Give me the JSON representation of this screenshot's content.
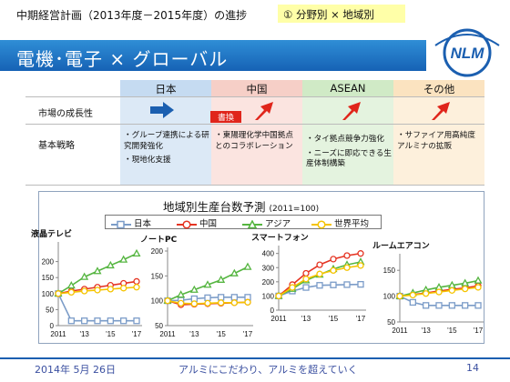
{
  "header": {
    "subtitle": "中期経営計画（2013年度－2015年度）の進捗",
    "tag": "① 分野別 × 地域別",
    "banner_title": "電機･電子 × グローバル",
    "logo_text": "NLM"
  },
  "matrix": {
    "columns": [
      "日本",
      "中国",
      "ASEAN",
      "その他"
    ],
    "row_labels": [
      "市場の成長性",
      "基本戦略"
    ],
    "badge": "書換",
    "strategies": {
      "japan": [
        "・グループ連携による研究開発強化",
        "・現地化支援"
      ],
      "china": [
        "・東陽理化学中国拠点とのコラボレーション"
      ],
      "asean": [
        "・タイ拠点競争力強化",
        "・ニーズに即応できる生産体制構築"
      ],
      "other": [
        "・サファイア用高純度アルミナの拡販"
      ]
    },
    "colors": {
      "japan": "#dce9f6",
      "china": "#fbe4e0",
      "asean": "#e4f3df",
      "other": "#fdf0dc"
    }
  },
  "chart_panel": {
    "title": "地域別生産台数予測",
    "title_note": "(2011=100)",
    "legend": [
      {
        "name": "日本",
        "color": "#7b9cc8"
      },
      {
        "name": "中国",
        "color": "#e53422"
      },
      {
        "name": "アジア",
        "color": "#55b540"
      },
      {
        "name": "世界平均",
        "color": "#f5c400"
      }
    ]
  },
  "chart_data": [
    {
      "type": "line",
      "title": "液晶テレビ",
      "x": [
        "2011",
        "2012",
        "2013",
        "2014",
        "2015",
        "2016",
        "2017"
      ],
      "xticks": [
        "2011",
        "'13",
        "'15",
        "'17"
      ],
      "ylim": [
        0,
        250
      ],
      "yticks": [
        0,
        50,
        100,
        150,
        200
      ],
      "series": [
        {
          "name": "日本",
          "values": [
            100,
            15,
            15,
            15,
            15,
            15,
            15
          ]
        },
        {
          "name": "中国",
          "values": [
            100,
            108,
            114,
            120,
            126,
            132,
            138
          ]
        },
        {
          "name": "アジア",
          "values": [
            100,
            125,
            152,
            170,
            188,
            206,
            225
          ]
        },
        {
          "name": "世界平均",
          "values": [
            100,
            104,
            108,
            111,
            114,
            117,
            120
          ]
        }
      ]
    },
    {
      "type": "line",
      "title": "ノートPC",
      "x": [
        "2011",
        "2012",
        "2013",
        "2014",
        "2015",
        "2016",
        "2017"
      ],
      "xticks": [
        "2011",
        "'13",
        "'15",
        "'17"
      ],
      "ylim": [
        50,
        200
      ],
      "yticks": [
        50,
        100,
        150,
        200
      ],
      "series": [
        {
          "name": "日本",
          "values": [
            100,
            101,
            104,
            106,
            107,
            107,
            107
          ]
        },
        {
          "name": "中国",
          "values": [
            100,
            92,
            93,
            94,
            95,
            96,
            97
          ]
        },
        {
          "name": "アジア",
          "values": [
            100,
            112,
            122,
            132,
            142,
            155,
            168
          ]
        },
        {
          "name": "世界平均",
          "values": [
            100,
            95,
            94,
            95,
            96,
            96,
            97
          ]
        }
      ]
    },
    {
      "type": "line",
      "title": "スマートフォン",
      "x": [
        "2011",
        "2012",
        "2013",
        "2014",
        "2015",
        "2016",
        "2017"
      ],
      "xticks": [
        "2011",
        "'13",
        "'15",
        "'17"
      ],
      "ylim": [
        0,
        430
      ],
      "yticks": [
        0,
        100,
        200,
        300,
        400
      ],
      "series": [
        {
          "name": "日本",
          "values": [
            100,
            135,
            160,
            175,
            178,
            180,
            182
          ]
        },
        {
          "name": "中国",
          "values": [
            100,
            180,
            260,
            320,
            360,
            385,
            400
          ]
        },
        {
          "name": "アジア",
          "values": [
            100,
            150,
            210,
            250,
            290,
            320,
            340
          ]
        },
        {
          "name": "世界平均",
          "values": [
            100,
            160,
            220,
            255,
            280,
            300,
            315
          ]
        }
      ]
    },
    {
      "type": "line",
      "title": "ルームエアコン",
      "x": [
        "2011",
        "2012",
        "2013",
        "2014",
        "2015",
        "2016",
        "2017"
      ],
      "xticks": [
        "2011",
        "'13",
        "'15",
        "'17"
      ],
      "ylim": [
        50,
        175
      ],
      "yticks": [
        50,
        100,
        150
      ],
      "series": [
        {
          "name": "日本",
          "values": [
            100,
            88,
            82,
            82,
            82,
            82,
            82
          ]
        },
        {
          "name": "中国",
          "values": [
            100,
            103,
            106,
            110,
            113,
            116,
            120
          ]
        },
        {
          "name": "アジア",
          "values": [
            100,
            106,
            112,
            117,
            121,
            125,
            130
          ]
        },
        {
          "name": "世界平均",
          "values": [
            100,
            102,
            105,
            108,
            111,
            114,
            117
          ]
        }
      ]
    }
  ],
  "footer": {
    "date": "2014年 5月 26日",
    "slogan": "アルミにこだわり、アルミを超えていく",
    "page": "14"
  }
}
